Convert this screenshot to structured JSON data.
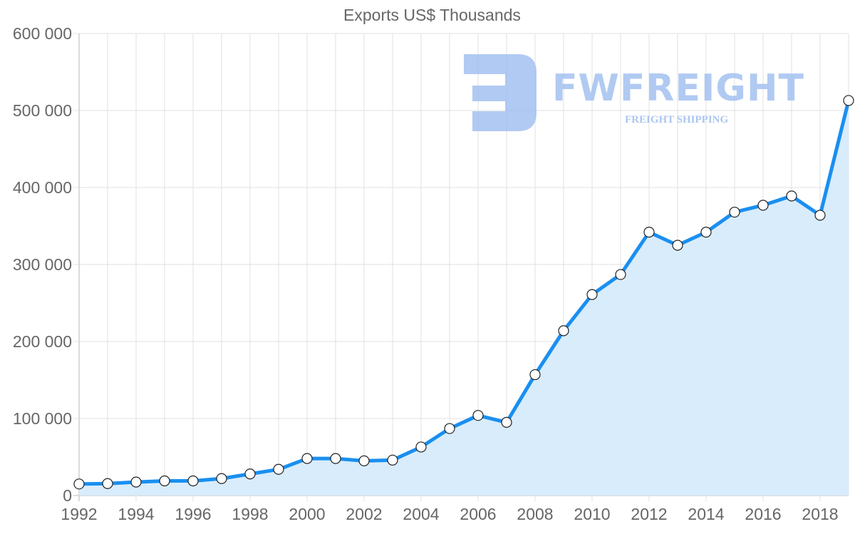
{
  "chart": {
    "title": "Exports US$ Thousands"
  },
  "watermark": {
    "brand": "FWFREIGHT",
    "tagline": "FREIGHT SHIPPING"
  },
  "colors": {
    "line": "#1a8ff0",
    "fill": "#d6ebfc",
    "point_fill": "#ffffff",
    "point_stroke": "#222222",
    "grid": "#e1e1e1",
    "text": "#666666",
    "watermark": "#9dbdf0"
  },
  "chart_data": {
    "type": "area",
    "title": "Exports US$ Thousands",
    "xlabel": "",
    "ylabel": "",
    "x": [
      1992,
      1993,
      1994,
      1995,
      1996,
      1997,
      1998,
      1999,
      2000,
      2001,
      2002,
      2003,
      2004,
      2005,
      2006,
      2007,
      2008,
      2009,
      2010,
      2011,
      2012,
      2013,
      2014,
      2015,
      2016,
      2017,
      2018,
      2019
    ],
    "series": [
      {
        "name": "Exports US$ Thousands",
        "values": [
          15000,
          15500,
          17500,
          19000,
          19000,
          22000,
          28000,
          34000,
          48000,
          48000,
          45000,
          46000,
          63000,
          87000,
          104000,
          95000,
          157000,
          214000,
          261000,
          287000,
          342000,
          325000,
          342000,
          368000,
          377000,
          389000,
          364000,
          513000
        ]
      }
    ],
    "ylim": [
      0,
      600000
    ],
    "yticks": [
      "0",
      "100 000",
      "200 000",
      "300 000",
      "400 000",
      "500 000",
      "600 000"
    ],
    "xticks": [
      "1992",
      "1994",
      "1996",
      "1998",
      "2000",
      "2002",
      "2004",
      "2006",
      "2008",
      "2010",
      "2012",
      "2014",
      "2016",
      "2018"
    ],
    "grid": true,
    "legend": "none"
  }
}
